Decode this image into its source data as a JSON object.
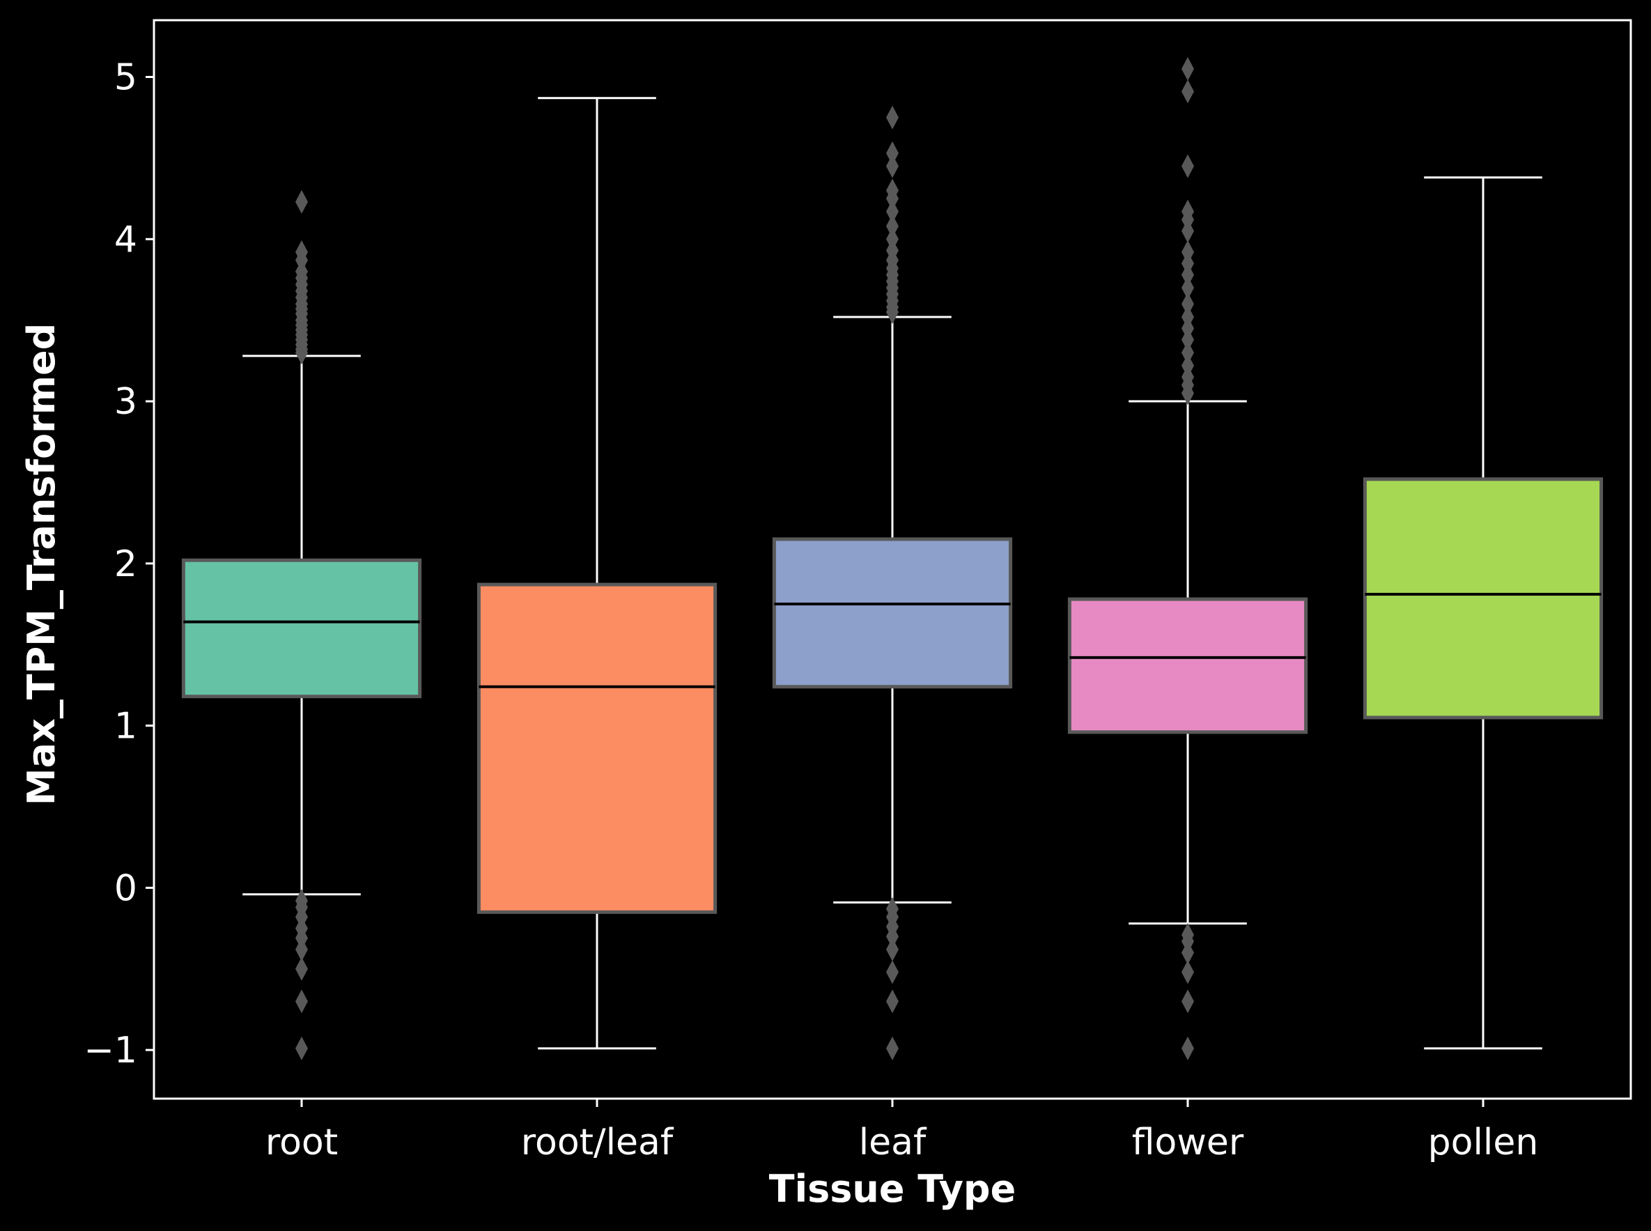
{
  "chart_data": {
    "type": "box",
    "title": "",
    "xlabel": "Tissue Type",
    "ylabel": "Max_TPM_Transformed",
    "ylim": [
      -1.3,
      5.35
    ],
    "yticks": [
      -1,
      0,
      1,
      2,
      3,
      4,
      5
    ],
    "ytick_labels": [
      "−1",
      "0",
      "1",
      "2",
      "3",
      "4",
      "5"
    ],
    "grid": false,
    "legend": "none",
    "categories": [
      "root",
      "root/leaf",
      "leaf",
      "flower",
      "pollen"
    ],
    "colors": [
      "#66c2a5",
      "#fc8d62",
      "#8da0cb",
      "#e78ac3",
      "#a6d854"
    ],
    "box_edge_color": "#595959",
    "median_color": "#000000",
    "whisker_color": "#ffffff",
    "outlier_color": "#595959",
    "boxes": [
      {
        "category": "root",
        "whisker_low": -0.04,
        "q1": 1.18,
        "median": 1.64,
        "q3": 2.02,
        "whisker_high": 3.28,
        "outliers": [
          4.23,
          3.92,
          3.87,
          3.8,
          3.76,
          3.72,
          3.68,
          3.64,
          3.6,
          3.57,
          3.54,
          3.5,
          3.47,
          3.44,
          3.41,
          3.38,
          3.35,
          3.32,
          3.3,
          -0.08,
          -0.12,
          -0.18,
          -0.25,
          -0.31,
          -0.38,
          -0.5,
          -0.7,
          -0.99
        ]
      },
      {
        "category": "root/leaf",
        "whisker_low": -0.99,
        "q1": -0.15,
        "median": 1.24,
        "q3": 1.87,
        "whisker_high": 4.87,
        "outliers": []
      },
      {
        "category": "leaf",
        "whisker_low": -0.09,
        "q1": 1.24,
        "median": 1.75,
        "q3": 2.15,
        "whisker_high": 3.52,
        "outliers": [
          4.75,
          4.53,
          4.45,
          4.3,
          4.25,
          4.17,
          4.08,
          4.0,
          3.93,
          3.87,
          3.82,
          3.78,
          3.74,
          3.7,
          3.66,
          3.62,
          3.58,
          3.55,
          -0.13,
          -0.18,
          -0.24,
          -0.3,
          -0.38,
          -0.52,
          -0.7,
          -0.99
        ]
      },
      {
        "category": "flower",
        "whisker_low": -0.22,
        "q1": 0.96,
        "median": 1.42,
        "q3": 1.78,
        "whisker_high": 3.0,
        "outliers": [
          5.05,
          4.91,
          4.45,
          4.17,
          4.12,
          4.05,
          3.92,
          3.85,
          3.78,
          3.7,
          3.6,
          3.52,
          3.45,
          3.38,
          3.3,
          3.22,
          3.15,
          3.1,
          3.05,
          -0.29,
          -0.33,
          -0.4,
          -0.52,
          -0.7,
          -0.99
        ]
      },
      {
        "category": "pollen",
        "whisker_low": -0.99,
        "q1": 1.05,
        "median": 1.81,
        "q3": 2.52,
        "whisker_high": 4.38,
        "outliers": []
      }
    ]
  }
}
